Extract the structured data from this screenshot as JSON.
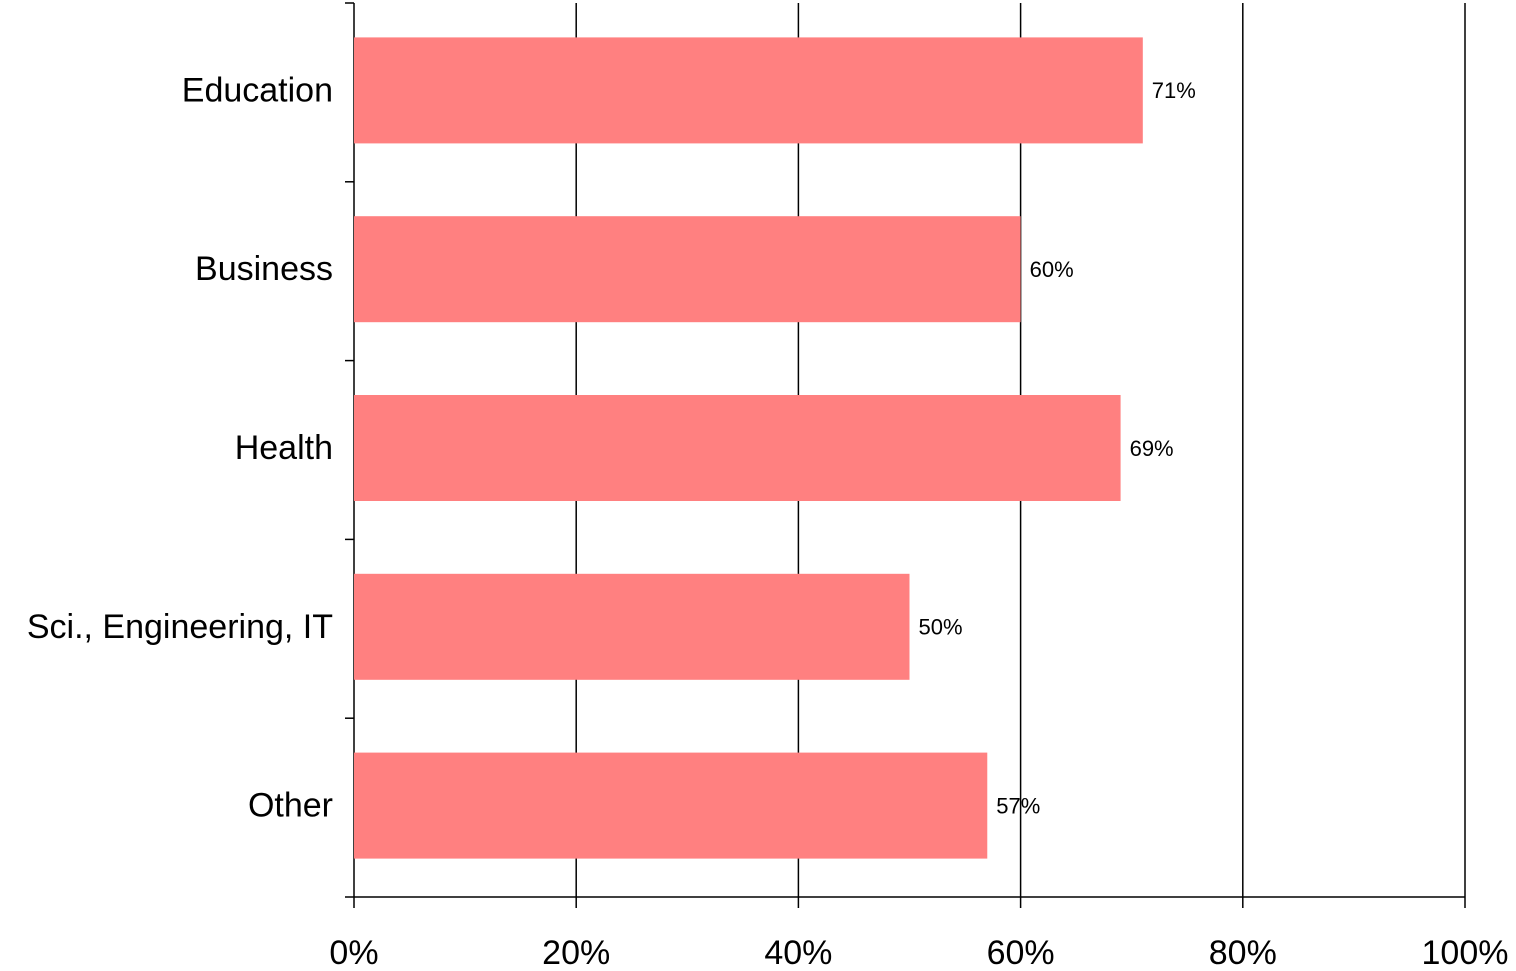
{
  "chart_data": {
    "type": "hbar",
    "categories": [
      "Education",
      "Business",
      "Health",
      "Sci., Engineering, IT",
      "Other"
    ],
    "values": [
      71,
      60,
      69,
      50,
      57
    ],
    "value_labels": [
      "71%",
      "60%",
      "69%",
      "50%",
      "57%"
    ],
    "color": "#ff8080",
    "xlim": [
      0,
      100
    ],
    "xticks": [
      {
        "value": 0,
        "label": "0%"
      },
      {
        "value": 20,
        "label": "20%"
      },
      {
        "value": 40,
        "label": "40%"
      },
      {
        "value": 60,
        "label": "60%"
      },
      {
        "value": 80,
        "label": "80%"
      },
      {
        "value": 100,
        "label": "100%"
      }
    ],
    "grid": true
  }
}
